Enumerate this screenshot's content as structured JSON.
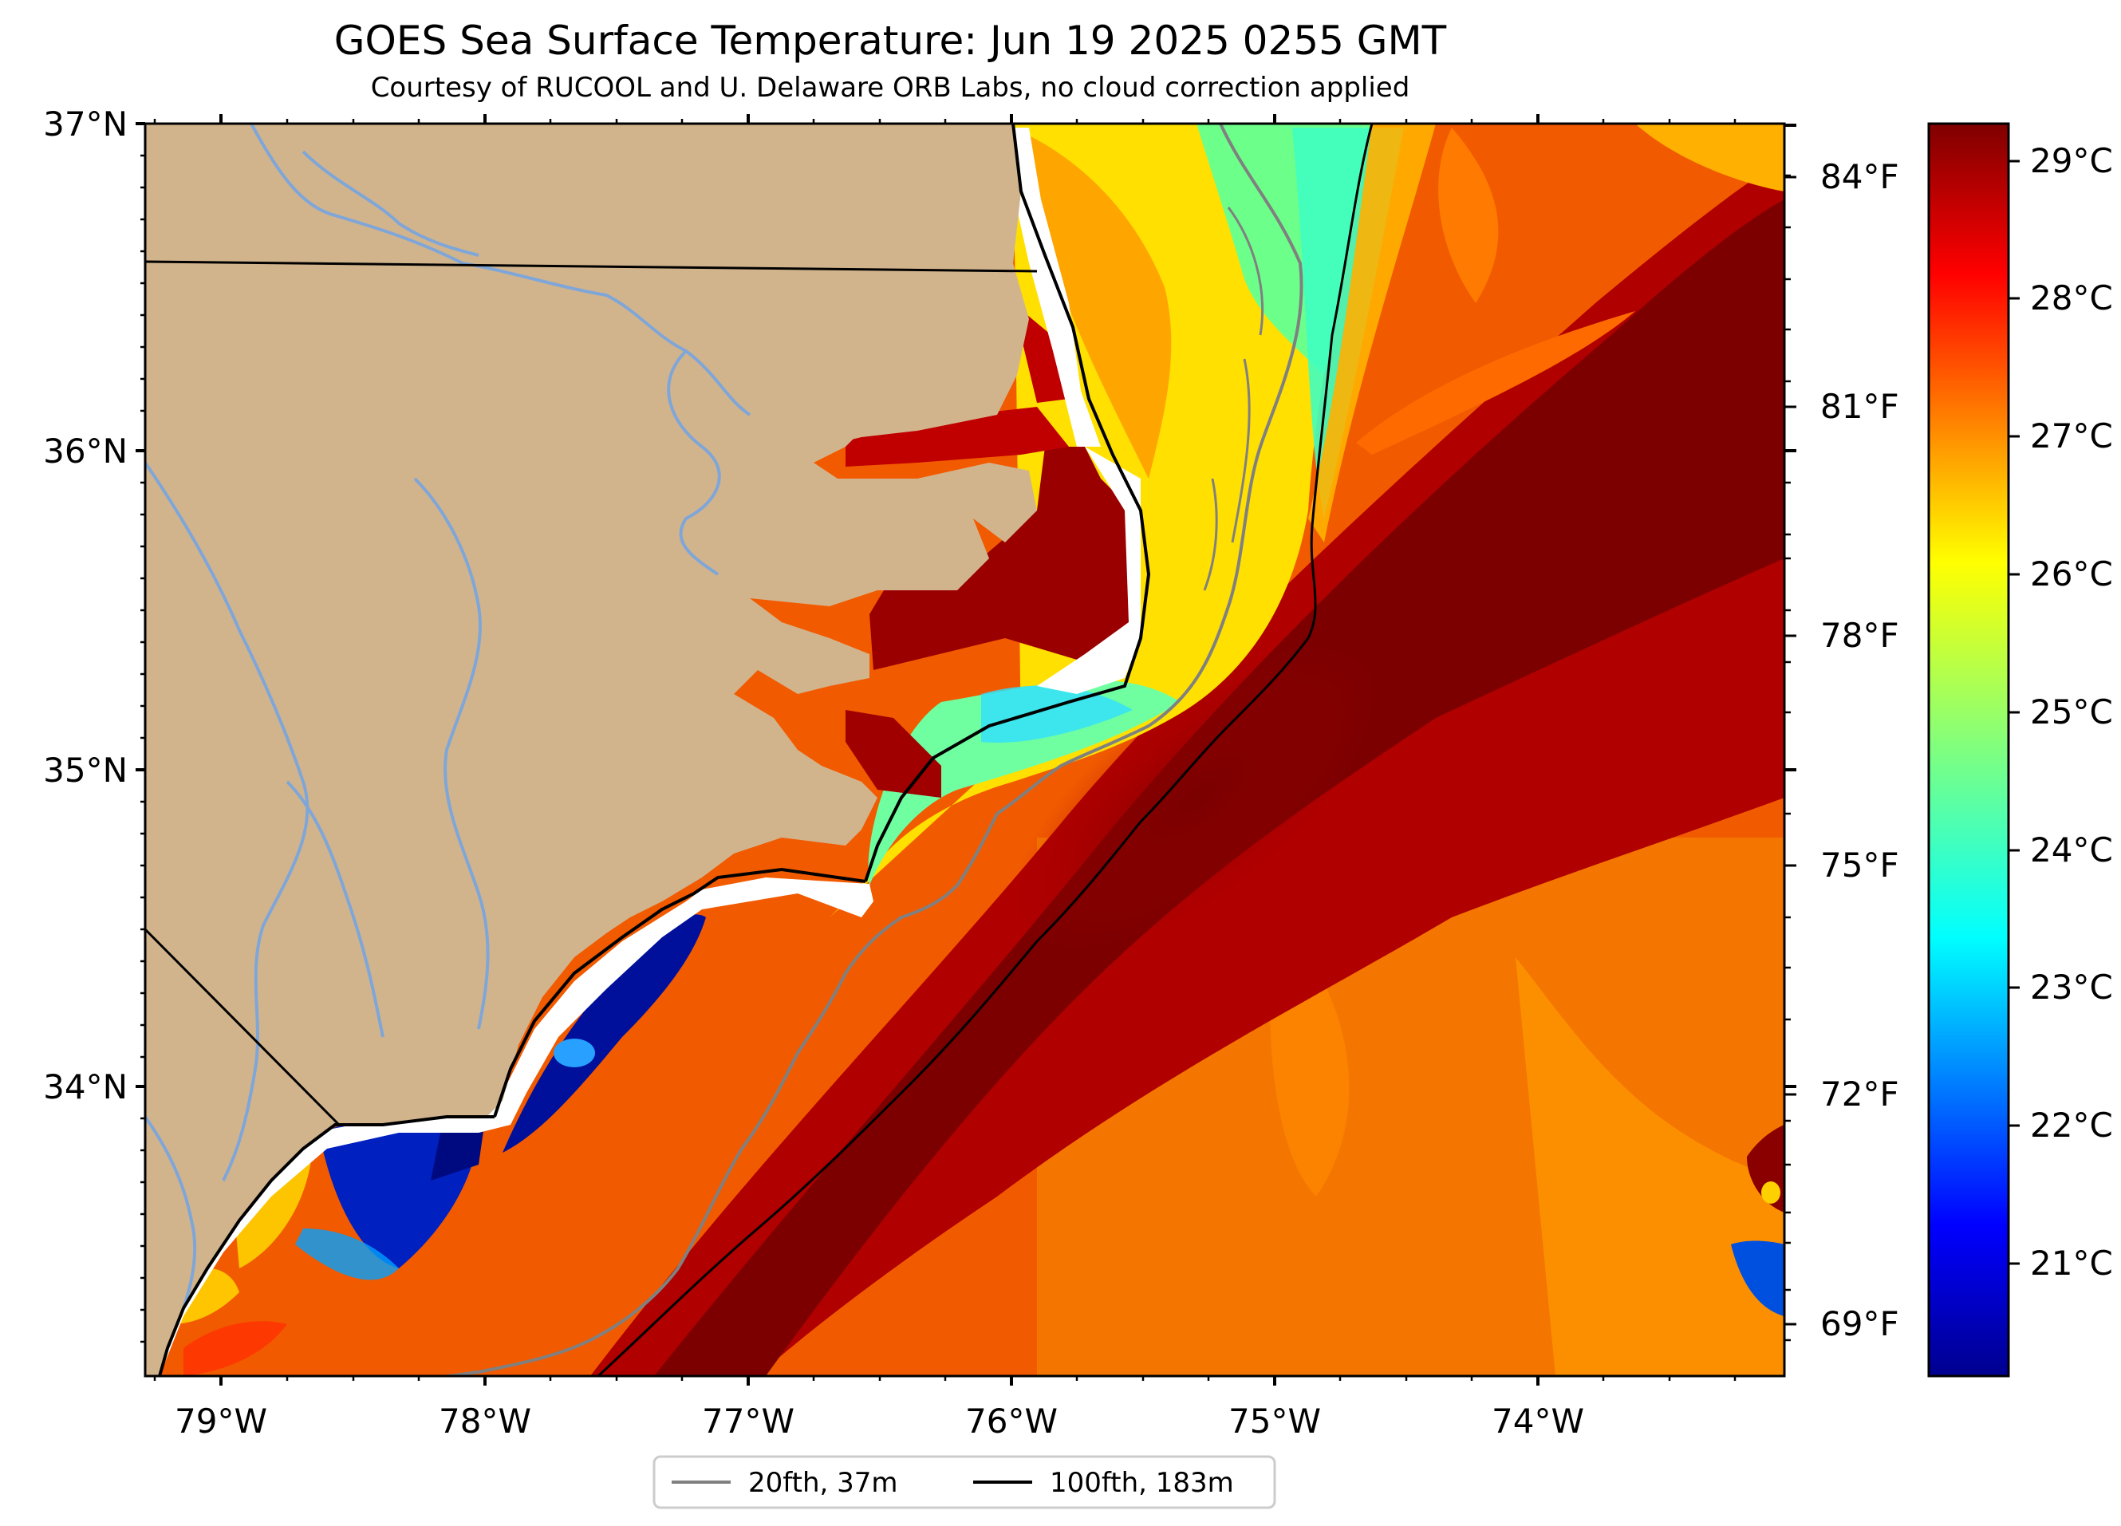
{
  "title": "GOES Sea Surface Temperature: Jun 19 2025 0255 GMT",
  "subtitle": "Courtesy of RUCOOL and U. Delaware ORB Labs, no cloud correction applied",
  "map": {
    "lon_range": [
      -79.3,
      -73.1
    ],
    "lat_range": [
      33.1,
      37.0
    ],
    "lat_ticks": [
      "37°N",
      "36°N",
      "35°N",
      "34°N"
    ],
    "lon_ticks": [
      "79°W",
      "78°W",
      "77°W",
      "76°W",
      "75°W",
      "74°W"
    ],
    "fahrenheit_ticks": [
      "84°F",
      "81°F",
      "78°F",
      "75°F",
      "72°F",
      "69°F"
    ],
    "land_color": "#d2b48c",
    "river_color": "#7fa6d8"
  },
  "colorbar": {
    "colormap": "jet",
    "range_c": [
      20.3,
      29.3
    ],
    "tick_labels": [
      "29°C",
      "28°C",
      "27°C",
      "26°C",
      "25°C",
      "24°C",
      "23°C",
      "22°C",
      "21°C"
    ]
  },
  "legend": {
    "items": [
      {
        "label": "20fth, 37m",
        "color": "#808080"
      },
      {
        "label": "100fth, 183m",
        "color": "#000000"
      }
    ]
  }
}
